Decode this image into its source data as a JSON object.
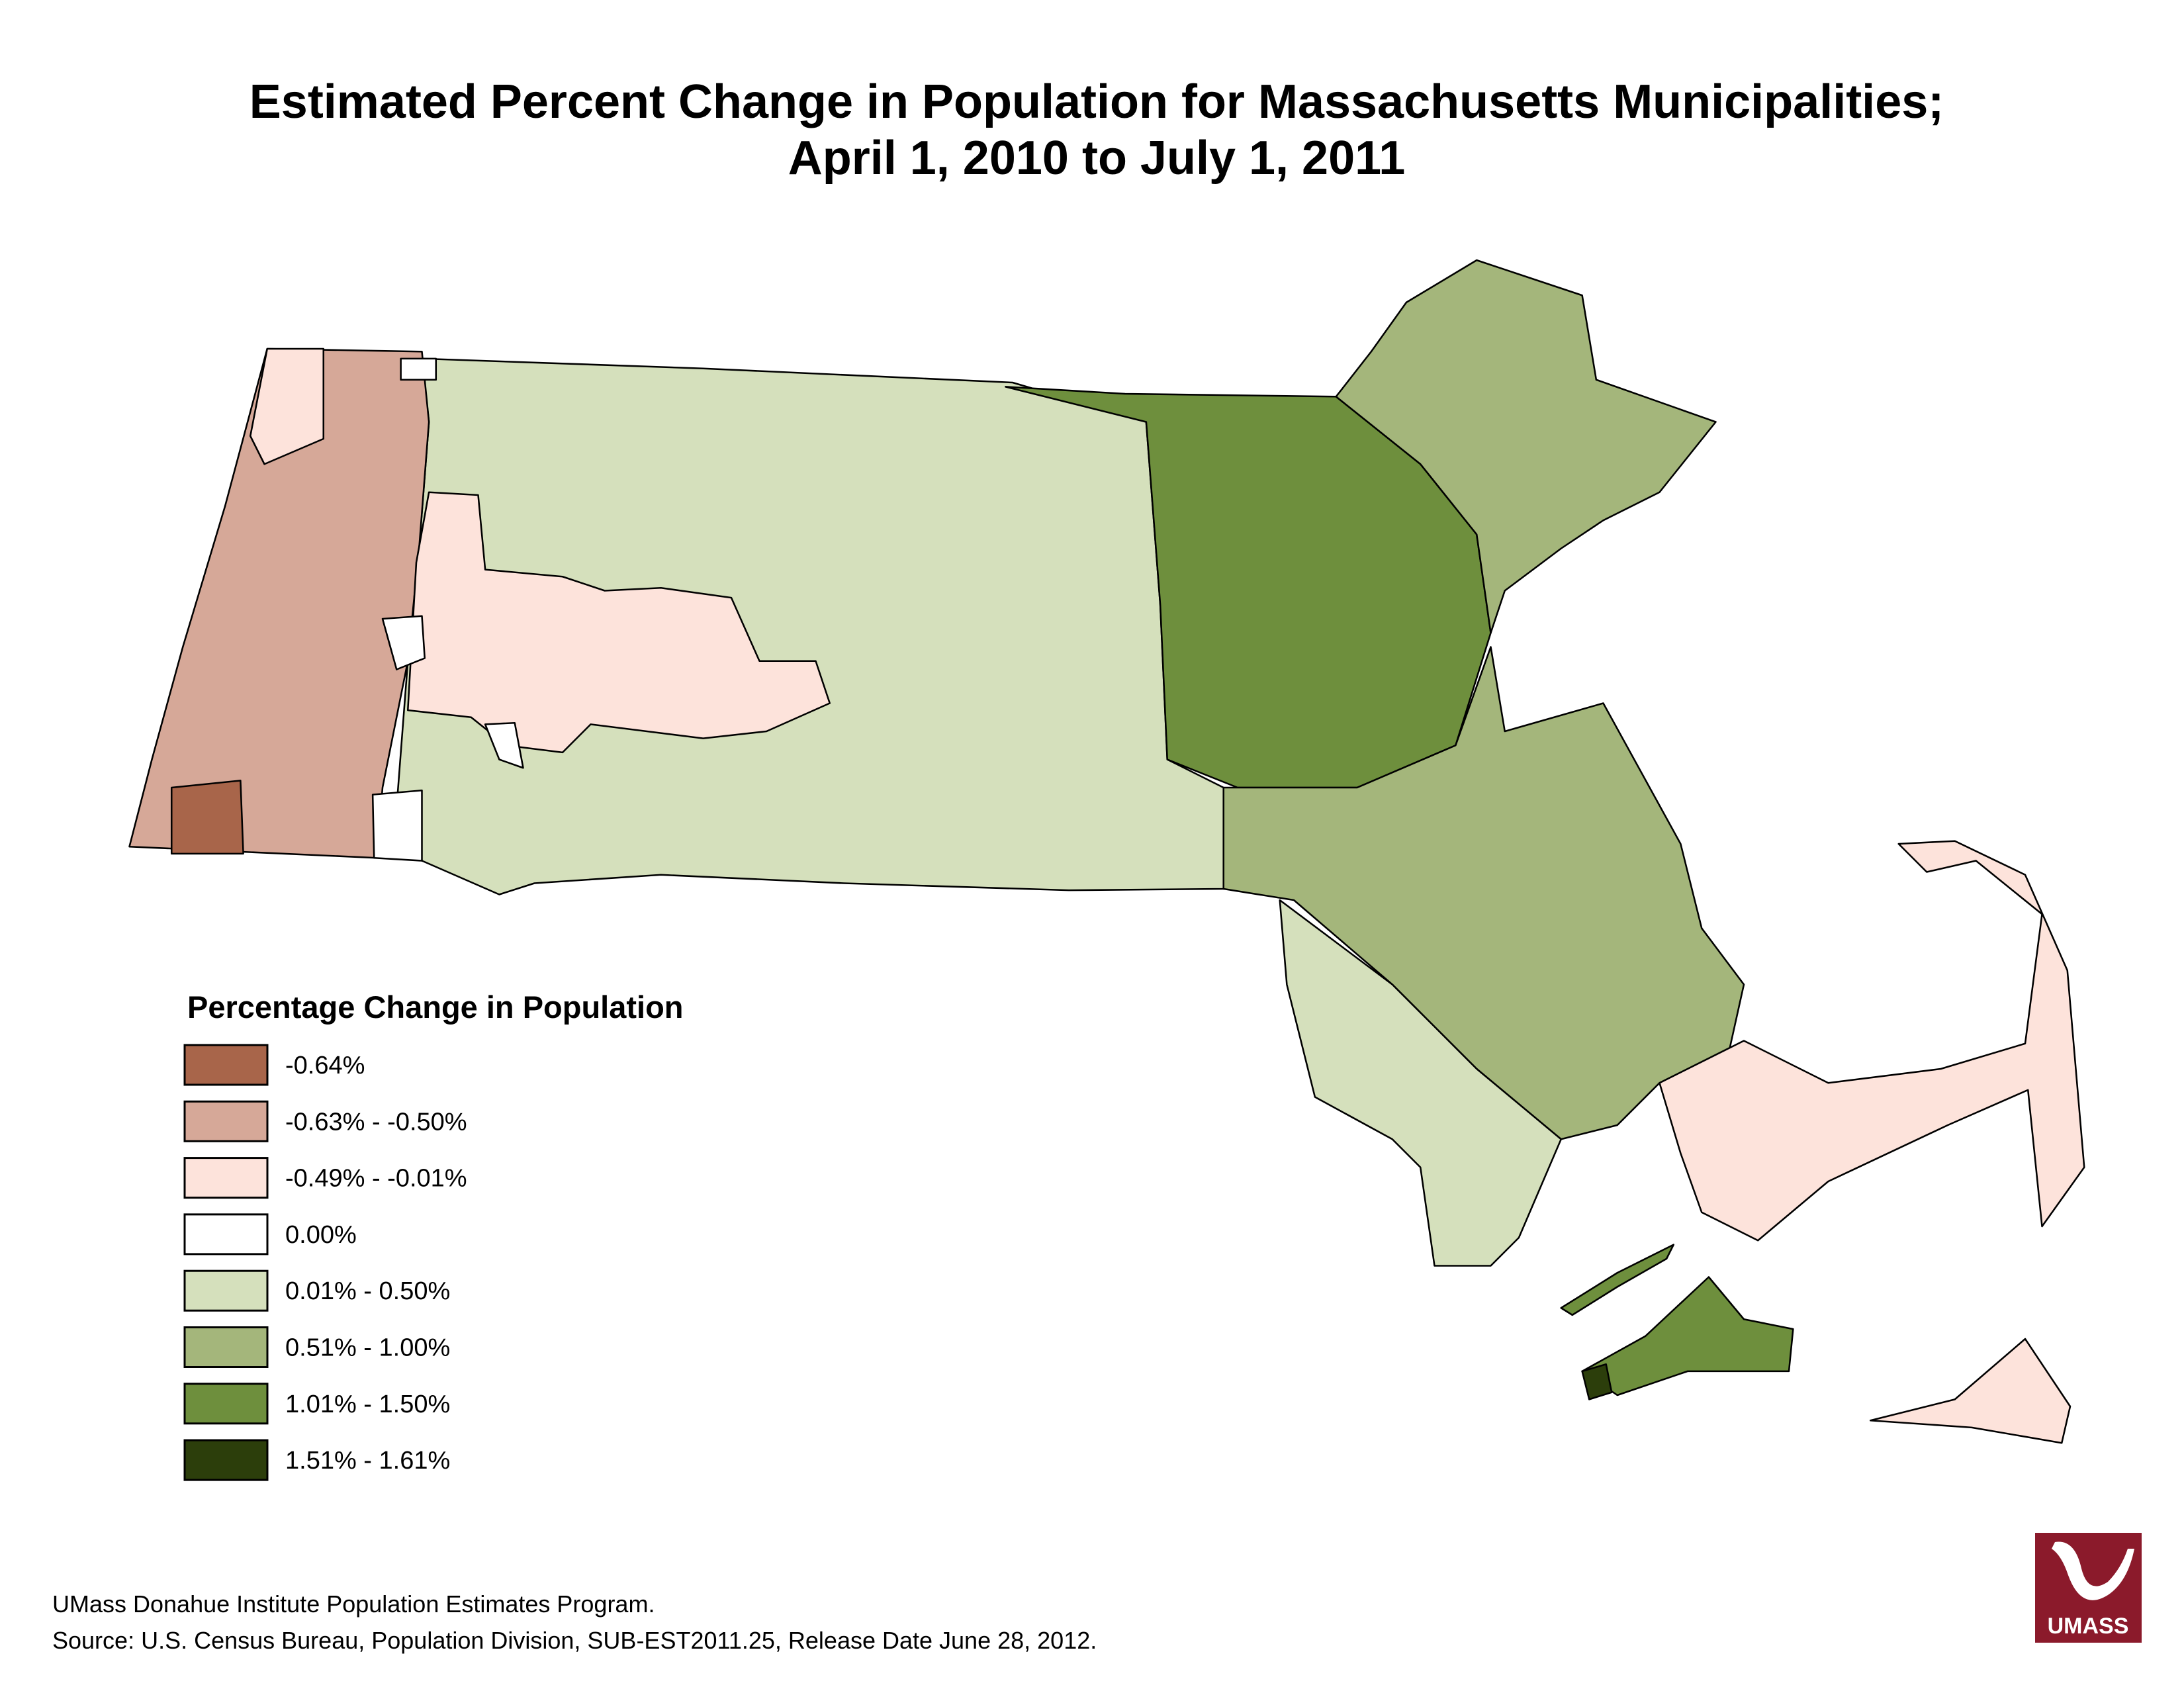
{
  "header": {
    "title_lines": [
      "Estimated Percent Change in Population for Massachusetts Municipalities;",
      "April 1, 2010 to July 1, 2011"
    ]
  },
  "legend": {
    "title": "Percentage Change in Population",
    "items": [
      {
        "label": "-0.64%",
        "color": "#a8654a"
      },
      {
        "label": "-0.63% - -0.50%",
        "color": "#d6a898"
      },
      {
        "label": "-0.49% - -0.01%",
        "color": "#fde3db"
      },
      {
        "label": "0.00%",
        "color": "#ffffff"
      },
      {
        "label": "0.01% - 0.50%",
        "color": "#d5e0bc"
      },
      {
        "label": "0.51% - 1.00%",
        "color": "#a4b67b"
      },
      {
        "label": "1.01% - 1.50%",
        "color": "#6e8f3d"
      },
      {
        "label": "1.51% - 1.61%",
        "color": "#2c3e0b"
      }
    ]
  },
  "footer": {
    "lines": [
      "UMass Donahue Institute Population Estimates Program.",
      "Source: U.S. Census Bureau, Population Division, SUB-EST2011.25, Release Date June 28, 2012."
    ]
  },
  "logo": {
    "text": "UMASS"
  }
}
